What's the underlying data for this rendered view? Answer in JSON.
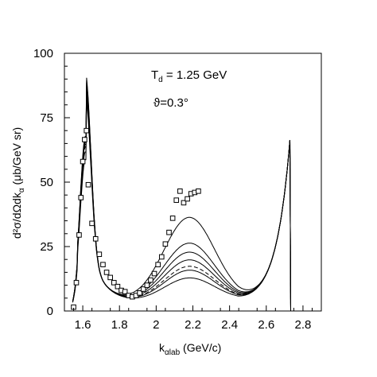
{
  "chart_data": {
    "type": "line",
    "title": "",
    "xlabel": "k",
    "xlabel_subscript": "αlab",
    "xlabel_units": " (GeV/c)",
    "ylabel": "d²σ/dΩdk",
    "ylabel_subscript": "α",
    "ylabel_units": " (μb/GeV sr)",
    "annotations": {
      "energy_prefix": "T",
      "energy_subscript": "d",
      "energy_value": " = 1.25 GeV",
      "angle": "ϑ=0.3°"
    },
    "xlim": [
      1.5,
      2.9
    ],
    "ylim": [
      0,
      100
    ],
    "x_ticks": [
      1.6,
      1.8,
      2,
      2.2,
      2.4,
      2.6,
      2.8
    ],
    "x_tick_labels": [
      "1.6",
      "1.8",
      "2",
      "2.2",
      "2.4",
      "2.6",
      "2.8"
    ],
    "y_ticks": [
      0,
      25,
      50,
      75,
      100
    ],
    "y_tick_labels": [
      "0",
      "25",
      "50",
      "75",
      "100"
    ],
    "grid": false,
    "series": [
      {
        "style": "solid",
        "low_peak": 65,
        "bump": 35.5
      },
      {
        "style": "solid",
        "low_peak": 64,
        "bump": 25.5
      },
      {
        "style": "solid",
        "low_peak": 63,
        "bump": 22.0
      },
      {
        "style": "solid",
        "low_peak": 62,
        "bump": 19.0
      },
      {
        "style": "dashed",
        "low_peak": 61,
        "bump": 16.5
      },
      {
        "style": "solid",
        "low_peak": 59,
        "bump": 15.0
      },
      {
        "style": "solid",
        "low_peak": 56,
        "bump": 12.0
      }
    ],
    "data_points": {
      "marker": "open-square",
      "x": [
        1.55,
        1.565,
        1.58,
        1.59,
        1.6,
        1.61,
        1.62,
        1.63,
        1.65,
        1.67,
        1.69,
        1.71,
        1.73,
        1.75,
        1.77,
        1.79,
        1.81,
        1.83,
        1.85,
        1.87,
        1.89,
        1.91,
        1.93,
        1.95,
        1.97,
        1.99,
        2.01,
        2.03,
        2.05,
        2.07,
        2.09,
        2.11,
        2.13,
        2.15,
        2.17,
        2.19,
        2.21,
        2.23
      ],
      "y": [
        1.5,
        11,
        29.5,
        44,
        58,
        66.5,
        70,
        49,
        34,
        28,
        22,
        18,
        15,
        13,
        11,
        9.5,
        8,
        7.5,
        6,
        5.5,
        6,
        7,
        8.5,
        10,
        12,
        14.5,
        18,
        21,
        26,
        30.5,
        36,
        43,
        46.5,
        42,
        43.5,
        45.5,
        46,
        46.5
      ]
    }
  }
}
